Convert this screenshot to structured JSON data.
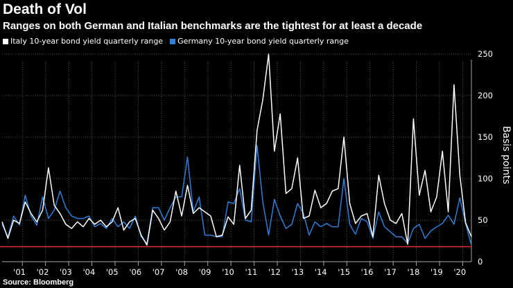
{
  "title": "Death of Vol",
  "subtitle": "Ranges on both German and Italian benchmarks are the tightest for at least a decade",
  "source": "Source: Bloomberg",
  "colors": {
    "background": "#000000",
    "italy": "#ffffff",
    "germany": "#2f7ed8",
    "threshold": "#e0322f",
    "grid": "#555555",
    "axis": "#aaaaaa"
  },
  "chart_data": {
    "type": "line",
    "title": "Death of Vol",
    "xlabel": "",
    "ylabel": "Basis points",
    "ylim": [
      0,
      250
    ],
    "yticks": [
      0,
      50,
      100,
      150,
      200,
      250
    ],
    "x_tick_labels": [
      "'01",
      "'02",
      "'03",
      "'04",
      "'05",
      "'06",
      "'07",
      "'08",
      "'09",
      "'10",
      "'11",
      "'12",
      "'13",
      "'14",
      "'15",
      "'16",
      "'17",
      "'18",
      "'19",
      "'20"
    ],
    "start_year": 2000,
    "threshold": 18,
    "series": [
      {
        "name": "Italy 10-year bond yield quarterly range",
        "values": [
          48,
          28,
          50,
          46,
          72,
          58,
          48,
          62,
          113,
          68,
          58,
          45,
          40,
          48,
          42,
          52,
          45,
          50,
          42,
          48,
          65,
          38,
          48,
          52,
          32,
          20,
          62,
          52,
          38,
          48,
          85,
          55,
          92,
          58,
          65,
          60,
          55,
          30,
          32,
          54,
          45,
          116,
          52,
          62,
          158,
          195,
          250,
          133,
          178,
          82,
          88,
          125,
          52,
          55,
          86,
          65,
          70,
          85,
          88,
          150,
          70,
          46,
          55,
          58,
          30,
          104,
          70,
          50,
          46,
          58,
          21,
          172,
          80,
          110,
          60,
          78,
          133,
          60,
          213,
          104,
          47,
          30
        ]
      },
      {
        "name": "Germany 10-year bond yield quarterly range",
        "values": [
          45,
          30,
          55,
          44,
          80,
          55,
          44,
          78,
          52,
          62,
          85,
          65,
          55,
          52,
          52,
          55,
          42,
          46,
          40,
          52,
          42,
          48,
          40,
          55,
          30,
          22,
          65,
          65,
          50,
          65,
          78,
          78,
          126,
          60,
          78,
          32,
          32,
          30,
          30,
          72,
          70,
          88,
          50,
          48,
          140,
          72,
          32,
          75,
          55,
          40,
          45,
          70,
          58,
          32,
          48,
          42,
          46,
          42,
          42,
          100,
          45,
          33,
          52,
          48,
          28,
          60,
          42,
          36,
          30,
          30,
          22,
          40,
          45,
          28,
          37,
          42,
          46,
          56,
          45,
          77,
          46,
          20
        ]
      }
    ]
  }
}
